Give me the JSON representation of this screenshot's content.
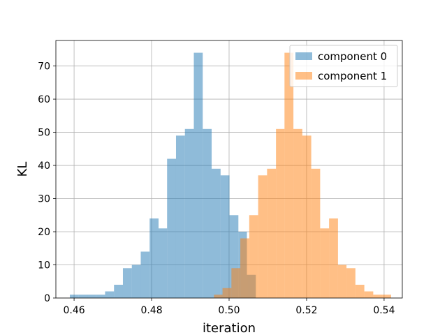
{
  "chart_data": {
    "type": "histogram",
    "xlabel": "iteration",
    "ylabel": "KL",
    "xlim": [
      0.4553,
      0.5447
    ],
    "ylim": [
      0,
      77.7
    ],
    "xticks": [
      0.46,
      0.48,
      0.5,
      0.52,
      0.54
    ],
    "xtick_labels": [
      "0.46",
      "0.48",
      "0.50",
      "0.52",
      "0.54"
    ],
    "yticks": [
      0,
      10,
      20,
      30,
      40,
      50,
      60,
      70
    ],
    "ytick_labels": [
      "0",
      "10",
      "20",
      "30",
      "40",
      "50",
      "60",
      "70"
    ],
    "grid": true,
    "legend_position": "top-right",
    "bar_alpha": 0.5,
    "series": [
      {
        "name": "component 0",
        "color": "#1f77b4",
        "bin_edges": [
          0.4589,
          0.4612,
          0.4635,
          0.4657,
          0.468,
          0.4703,
          0.4726,
          0.4749,
          0.4772,
          0.4795,
          0.4818,
          0.484,
          0.4863,
          0.4886,
          0.4909,
          0.4932,
          0.4955,
          0.4978,
          0.5001,
          0.5024,
          0.5046,
          0.5069
        ],
        "counts": [
          1,
          1,
          1,
          1,
          2,
          4,
          9,
          10,
          14,
          24,
          21,
          42,
          49,
          51,
          74,
          51,
          39,
          37,
          25,
          20,
          7
        ]
      },
      {
        "name": "component 1",
        "color": "#ff7f0e",
        "bin_edges": [
          0.4961,
          0.4983,
          0.5006,
          0.5029,
          0.5052,
          0.5075,
          0.5098,
          0.5121,
          0.5143,
          0.5166,
          0.5189,
          0.5212,
          0.5235,
          0.5258,
          0.5281,
          0.5303,
          0.5326,
          0.5349,
          0.5372,
          0.5395,
          0.5418
        ],
        "counts": [
          1,
          3,
          9,
          18,
          25,
          37,
          39,
          51,
          74,
          51,
          49,
          39,
          21,
          24,
          10,
          9,
          4,
          2,
          1,
          1
        ]
      }
    ]
  }
}
